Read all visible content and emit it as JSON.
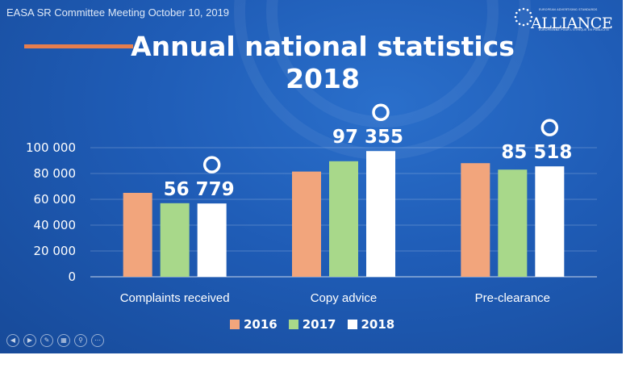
{
  "slide": {
    "header": "EASA SR Committee Meeting October 10, 2019",
    "title_line1": "Annual national statistics",
    "title_line2": "2018",
    "accent_color": "#e67e4e",
    "background_color": "#1f5cb6"
  },
  "logo": {
    "wordmark": "ALLIANCE",
    "line1": "EUROPEAN ADVERTISING STANDARDS",
    "line2": "EUROPEENNE POUR L'ETHIQUE EN PUBLICITE"
  },
  "chart_data": {
    "type": "bar",
    "categories": [
      "Complaints received",
      "Copy advice",
      "Pre-clearance"
    ],
    "series": [
      {
        "name": "2016",
        "color": "#f2a57c",
        "values": [
          65000,
          81500,
          88000
        ]
      },
      {
        "name": "2017",
        "color": "#a8d88a",
        "values": [
          57000,
          89500,
          83000
        ]
      },
      {
        "name": "2018",
        "color": "#ffffff",
        "values": [
          56779,
          97355,
          85518
        ]
      }
    ],
    "data_labels": [
      "56 779",
      "97 355",
      "85 518"
    ],
    "yticks": [
      "100 000",
      "80 000",
      "60 000",
      "40 000",
      "20 000",
      "0"
    ],
    "ytick_values": [
      100000,
      80000,
      60000,
      40000,
      20000,
      0
    ],
    "ylim": [
      0,
      100000
    ],
    "grid": true,
    "legend_position": "bottom"
  },
  "controls": [
    "previous-icon",
    "next-icon",
    "pen-icon",
    "slides-icon",
    "zoom-icon",
    "more-icon"
  ]
}
